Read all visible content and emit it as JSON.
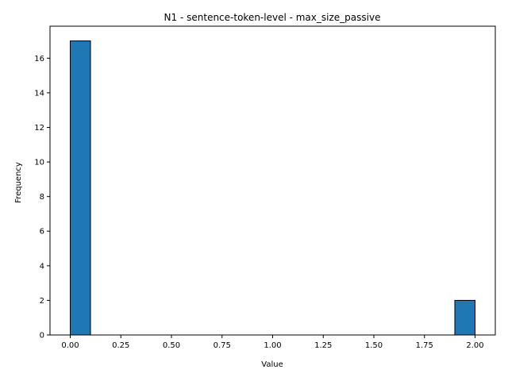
{
  "chart_data": {
    "type": "bar",
    "title": "N1 - sentence-token-level - max_size_passive",
    "xlabel": "Value",
    "ylabel": "Frequency",
    "bin_width": 0.1,
    "bins": [
      {
        "start": 0.0,
        "end": 0.1,
        "count": 17
      },
      {
        "start": 1.9,
        "end": 2.0,
        "count": 2
      }
    ],
    "xlim": [
      -0.1,
      2.1
    ],
    "ylim": [
      0,
      17.85
    ],
    "xticks": [
      0.0,
      0.25,
      0.5,
      0.75,
      1.0,
      1.25,
      1.5,
      1.75,
      2.0
    ],
    "xtick_labels": [
      "0.00",
      "0.25",
      "0.50",
      "0.75",
      "1.00",
      "1.25",
      "1.50",
      "1.75",
      "2.00"
    ],
    "yticks": [
      0,
      2,
      4,
      6,
      8,
      10,
      12,
      14,
      16
    ],
    "ytick_labels": [
      "0",
      "2",
      "4",
      "6",
      "8",
      "10",
      "12",
      "14",
      "16"
    ],
    "grid": false,
    "bar_color": "#1f77b4",
    "edge_color": "#000000"
  }
}
